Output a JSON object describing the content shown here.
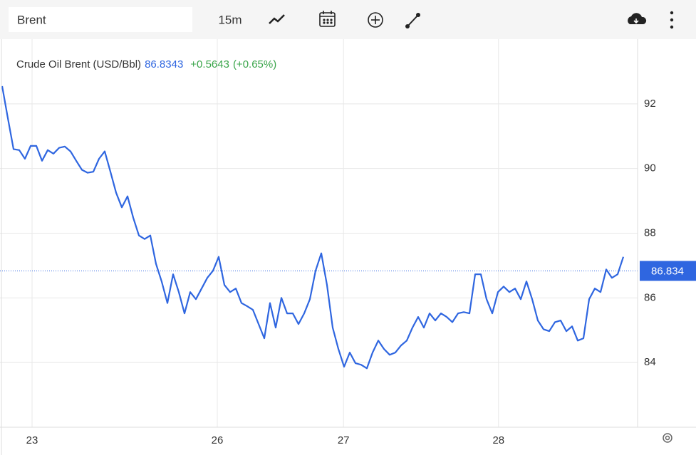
{
  "toolbar": {
    "symbol": "Brent",
    "interval": "15m"
  },
  "chart_data": {
    "type": "line",
    "title": "Crude Oil Brent (USD/Bbl)",
    "last_value": 86.8343,
    "change": "+0.5643",
    "change_percent": "(+0.65%)",
    "series": [
      {
        "name": "Crude Oil Brent",
        "color": "#2f66e0",
        "values": [
          92.55,
          91.56,
          90.6,
          90.57,
          90.3,
          90.7,
          90.7,
          90.24,
          90.57,
          90.46,
          90.64,
          90.68,
          90.53,
          90.24,
          89.96,
          89.87,
          89.9,
          90.3,
          90.53,
          89.9,
          89.25,
          88.8,
          89.14,
          88.48,
          87.93,
          87.82,
          87.93,
          87.05,
          86.5,
          85.84,
          86.73,
          86.18,
          85.52,
          86.18,
          85.96,
          86.29,
          86.62,
          86.84,
          87.27,
          86.4,
          86.18,
          86.29,
          85.84,
          85.74,
          85.63,
          85.19,
          84.75,
          85.84,
          85.08,
          86.0,
          85.52,
          85.52,
          85.19,
          85.52,
          85.96,
          86.84,
          87.38,
          86.4,
          85.08,
          84.42,
          83.87,
          84.31,
          83.98,
          83.93,
          83.82,
          84.31,
          84.68,
          84.42,
          84.24,
          84.31,
          84.53,
          84.68,
          85.08,
          85.41,
          85.08,
          85.52,
          85.3,
          85.52,
          85.41,
          85.25,
          85.52,
          85.56,
          85.52,
          86.73,
          86.73,
          85.96,
          85.52,
          86.18,
          86.35,
          86.18,
          86.29,
          85.96,
          86.51,
          85.96,
          85.3,
          85.03,
          84.97,
          85.25,
          85.3,
          84.97,
          85.12,
          84.68,
          84.75,
          85.96,
          86.29,
          86.18,
          86.88,
          86.62,
          86.73,
          87.27
        ]
      }
    ],
    "price_marker": 86.834,
    "xlim": [
      -0.375,
      111.5
    ],
    "xticks": [
      {
        "value": 5.25,
        "label": "23"
      },
      {
        "value": 37.75,
        "label": "26"
      },
      {
        "value": 59.9,
        "label": "27"
      },
      {
        "value": 87.1,
        "label": "28"
      }
    ],
    "ylim": [
      82,
      94
    ],
    "yticks": [
      84,
      86,
      88,
      90,
      92
    ],
    "grid": true
  }
}
